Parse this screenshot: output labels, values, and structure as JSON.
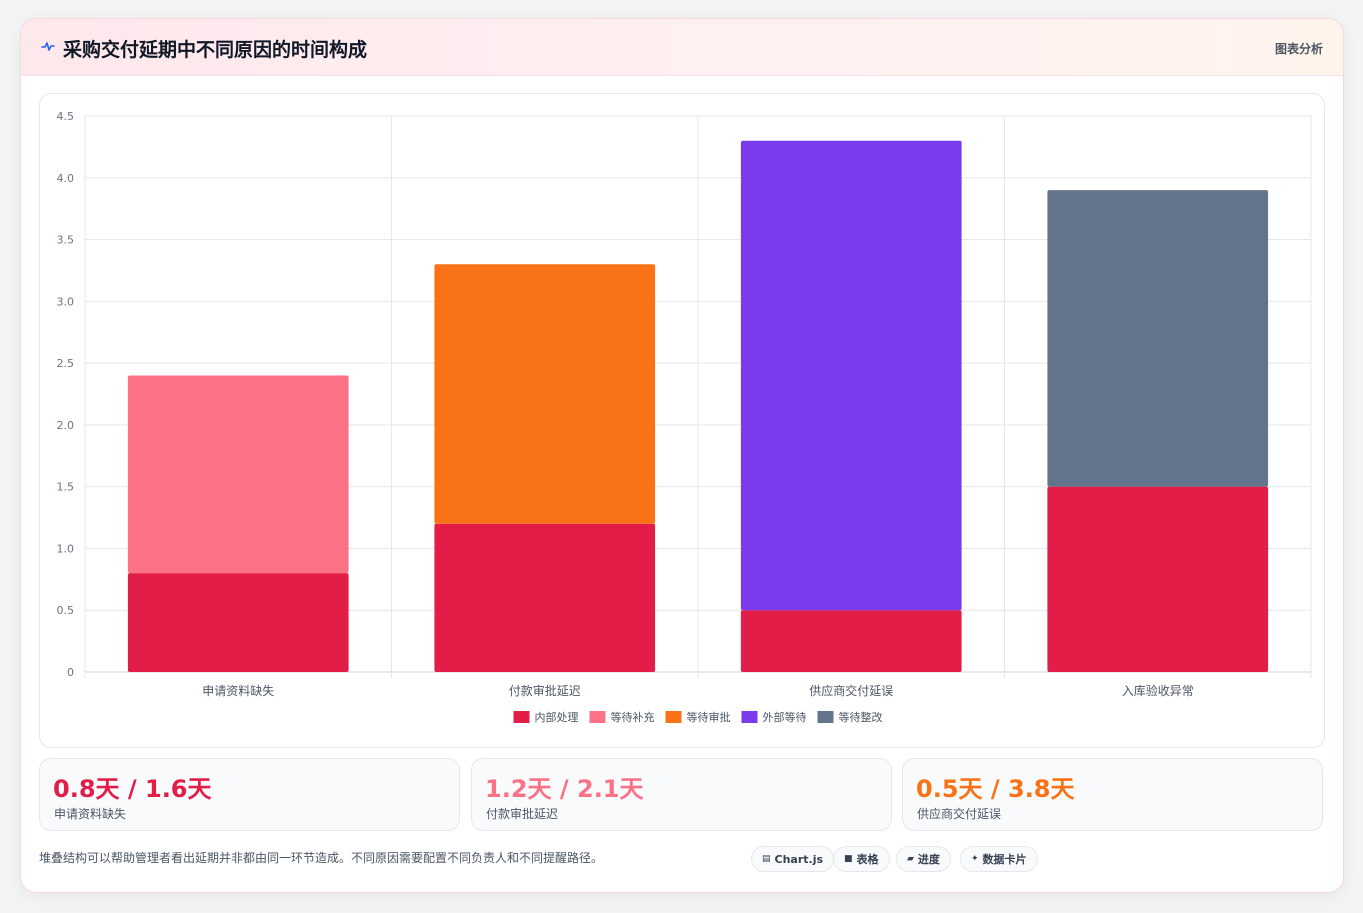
{
  "header": {
    "title": "采购交付延期中不同原因的时间构成",
    "action": "图表分析",
    "icon": "pulse-icon"
  },
  "chart_data": {
    "type": "bar",
    "stacked": true,
    "categories": [
      "申请资料缺失",
      "付款审批延迟",
      "供应商交付延误",
      "入库验收异常"
    ],
    "series": [
      {
        "name": "内部处理",
        "color": "#e11d48",
        "values": [
          0.8,
          1.2,
          0.5,
          1.5
        ]
      },
      {
        "name": "等待补充",
        "color": "#fb7185",
        "values": [
          1.6,
          0,
          0,
          0
        ]
      },
      {
        "name": "等待审批",
        "color": "#f97316",
        "values": [
          0,
          2.1,
          0,
          0
        ]
      },
      {
        "name": "外部等待",
        "color": "#7c3aed",
        "values": [
          0,
          0,
          3.8,
          0
        ]
      },
      {
        "name": "等待整改",
        "color": "#64748b",
        "values": [
          0,
          0,
          0,
          2.4
        ]
      }
    ],
    "ylim": [
      0,
      4.5
    ],
    "yticks": [
      "4.5",
      "4.0",
      "3.5",
      "3.0",
      "2.5",
      "2.0",
      "1.5",
      "1.0",
      "0.5",
      "0"
    ],
    "grid": true,
    "legend": "bottom"
  },
  "stats": [
    {
      "value": "0.8天 / 1.6天",
      "label": "申请资料缺失",
      "color": "#e11d48"
    },
    {
      "value": "1.2天 / 2.1天",
      "label": "付款审批延迟",
      "color": "#fb7185"
    },
    {
      "value": "0.5天 / 3.8天",
      "label": "供应商交付延误",
      "color": "#f97316"
    }
  ],
  "footnote": "堆叠结构可以帮助管理者看出延期并非都由同一环节造成。不同原因需要配置不同负责人和不同提醒路径。",
  "tags": [
    {
      "icon": "chart-icon",
      "label": "Chart.js"
    },
    {
      "icon": "table-icon",
      "label": "表格"
    },
    {
      "icon": "progress-icon",
      "label": "进度"
    },
    {
      "icon": "sparkle-icon",
      "label": "数据卡片"
    }
  ]
}
